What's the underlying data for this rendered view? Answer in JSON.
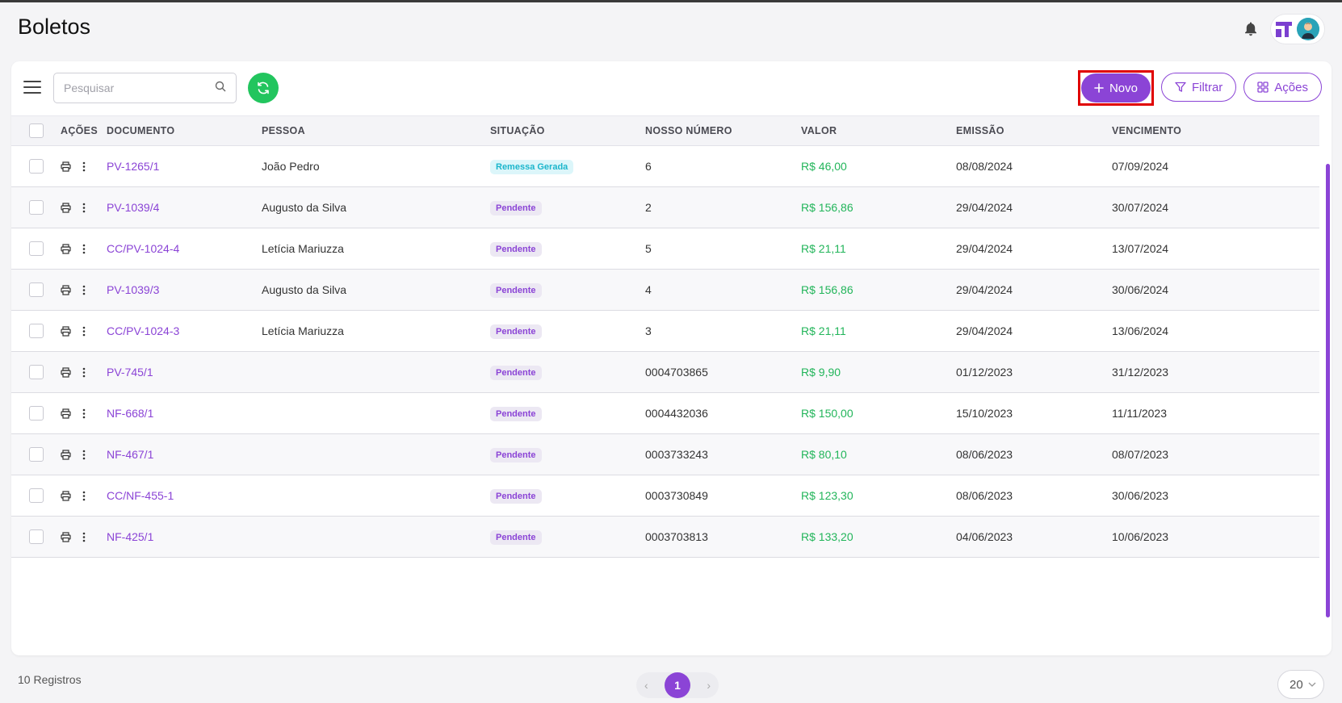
{
  "header": {
    "title": "Boletos"
  },
  "toolbar": {
    "search_placeholder": "Pesquisar",
    "new_label": "Novo",
    "filter_label": "Filtrar",
    "actions_label": "Ações"
  },
  "colors": {
    "accent": "#8b44d6",
    "success": "#22c55e",
    "highlight": "#e00000"
  },
  "table": {
    "columns": [
      "AÇÕES",
      "DOCUMENTO",
      "PESSOA",
      "SITUAÇÃO",
      "NOSSO NÚMERO",
      "VALOR",
      "EMISSÃO",
      "VENCIMENTO"
    ],
    "rows": [
      {
        "documento": "PV-1265/1",
        "pessoa": "João Pedro",
        "situacao": "Remessa Gerada",
        "nosso_numero": "6",
        "valor": "R$ 46,00",
        "emissao": "08/08/2024",
        "vencimento": "07/09/2024"
      },
      {
        "documento": "PV-1039/4",
        "pessoa": "Augusto da Silva",
        "situacao": "Pendente",
        "nosso_numero": "2",
        "valor": "R$ 156,86",
        "emissao": "29/04/2024",
        "vencimento": "30/07/2024"
      },
      {
        "documento": "CC/PV-1024-4",
        "pessoa": "Letícia Mariuzza",
        "situacao": "Pendente",
        "nosso_numero": "5",
        "valor": "R$ 21,11",
        "emissao": "29/04/2024",
        "vencimento": "13/07/2024"
      },
      {
        "documento": "PV-1039/3",
        "pessoa": "Augusto da Silva",
        "situacao": "Pendente",
        "nosso_numero": "4",
        "valor": "R$ 156,86",
        "emissao": "29/04/2024",
        "vencimento": "30/06/2024"
      },
      {
        "documento": "CC/PV-1024-3",
        "pessoa": "Letícia Mariuzza",
        "situacao": "Pendente",
        "nosso_numero": "3",
        "valor": "R$ 21,11",
        "emissao": "29/04/2024",
        "vencimento": "13/06/2024"
      },
      {
        "documento": "PV-745/1",
        "pessoa": "",
        "situacao": "Pendente",
        "nosso_numero": "0004703865",
        "valor": "R$ 9,90",
        "emissao": "01/12/2023",
        "vencimento": "31/12/2023"
      },
      {
        "documento": "NF-668/1",
        "pessoa": "",
        "situacao": "Pendente",
        "nosso_numero": "0004432036",
        "valor": "R$ 150,00",
        "emissao": "15/10/2023",
        "vencimento": "11/11/2023"
      },
      {
        "documento": "NF-467/1",
        "pessoa": "",
        "situacao": "Pendente",
        "nosso_numero": "0003733243",
        "valor": "R$ 80,10",
        "emissao": "08/06/2023",
        "vencimento": "08/07/2023"
      },
      {
        "documento": "CC/NF-455-1",
        "pessoa": "",
        "situacao": "Pendente",
        "nosso_numero": "0003730849",
        "valor": "R$ 123,30",
        "emissao": "08/06/2023",
        "vencimento": "30/06/2023"
      },
      {
        "documento": "NF-425/1",
        "pessoa": "",
        "situacao": "Pendente",
        "nosso_numero": "0003703813",
        "valor": "R$ 133,20",
        "emissao": "04/06/2023",
        "vencimento": "10/06/2023"
      }
    ]
  },
  "footer": {
    "count_label": "10 Registros",
    "current_page": "1",
    "per_page": "20",
    "prev_arrow": "‹",
    "next_arrow": "›"
  }
}
